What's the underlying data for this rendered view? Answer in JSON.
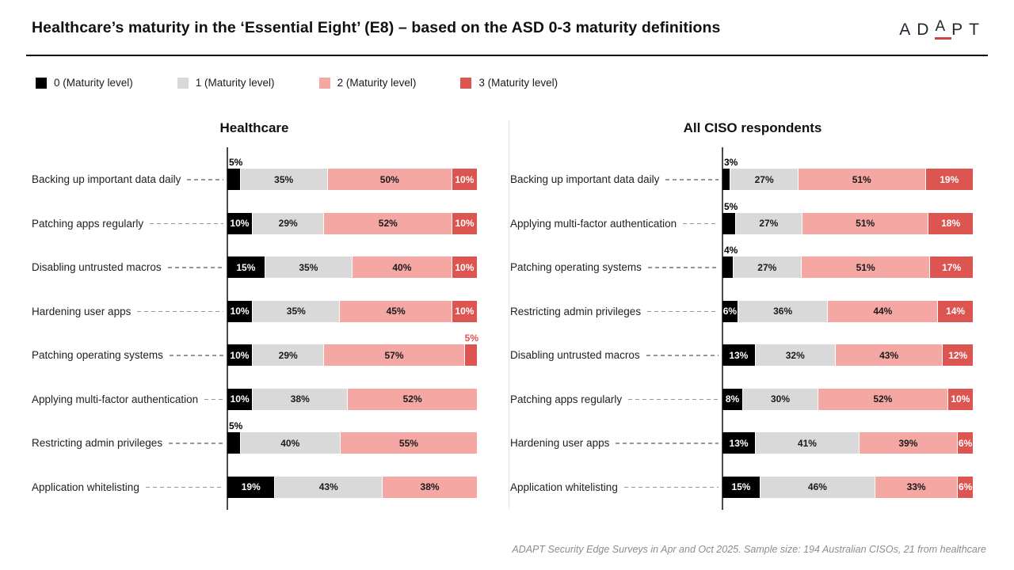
{
  "header": {
    "title": "Healthcare’s maturity in the ‘Essential Eight’ (E8) – based on the ASD 0-3 maturity definitions",
    "logo": {
      "prefix": "AD",
      "accent": "A",
      "suffix": "PT"
    }
  },
  "legend": {
    "items": [
      {
        "label": "0 (Maturity level)",
        "color": "#000000"
      },
      {
        "label": "1 (Maturity level)",
        "color": "#D9D9D9"
      },
      {
        "label": "2 (Maturity level)",
        "color": "#F4A7A3"
      },
      {
        "label": "3 (Maturity level)",
        "color": "#DC5551"
      }
    ]
  },
  "chart_data": [
    {
      "type": "bar",
      "orientation": "horizontal",
      "stacked": true,
      "unit": "%",
      "title": "Healthcare",
      "xlim": [
        0,
        100
      ],
      "grid": false,
      "categories": [
        "Backing up important data daily",
        "Patching apps regularly",
        "Disabling untrusted macros",
        "Hardening user apps",
        "Patching operating systems",
        "Applying multi-factor authentication",
        "Restricting admin privileges",
        "Application whitelisting"
      ],
      "series": [
        {
          "name": "0 (Maturity level)",
          "color": "#000000",
          "values": [
            5,
            10,
            15,
            10,
            10,
            10,
            5,
            19
          ]
        },
        {
          "name": "1 (Maturity level)",
          "color": "#D9D9D9",
          "values": [
            35,
            29,
            35,
            35,
            29,
            38,
            40,
            43
          ]
        },
        {
          "name": "2 (Maturity level)",
          "color": "#F4A7A3",
          "values": [
            50,
            52,
            40,
            45,
            57,
            52,
            55,
            38
          ]
        },
        {
          "name": "3 (Maturity level)",
          "color": "#DC5551",
          "values": [
            10,
            10,
            10,
            10,
            5,
            0,
            0,
            0
          ]
        }
      ]
    },
    {
      "type": "bar",
      "orientation": "horizontal",
      "stacked": true,
      "unit": "%",
      "title": "All CISO respondents",
      "xlim": [
        0,
        100
      ],
      "grid": false,
      "categories": [
        "Backing up important data daily",
        "Applying multi-factor authentication",
        "Patching operating systems",
        "Restricting admin privileges",
        "Disabling untrusted macros",
        "Patching apps regularly",
        "Hardening user apps",
        "Application whitelisting"
      ],
      "series": [
        {
          "name": "0 (Maturity level)",
          "color": "#000000",
          "values": [
            3,
            5,
            4,
            6,
            13,
            8,
            13,
            15
          ]
        },
        {
          "name": "1 (Maturity level)",
          "color": "#D9D9D9",
          "values": [
            27,
            27,
            27,
            36,
            32,
            30,
            41,
            46
          ]
        },
        {
          "name": "2 (Maturity level)",
          "color": "#F4A7A3",
          "values": [
            51,
            51,
            51,
            44,
            43,
            52,
            39,
            33
          ]
        },
        {
          "name": "3 (Maturity level)",
          "color": "#DC5551",
          "values": [
            19,
            18,
            17,
            14,
            12,
            10,
            6,
            6
          ]
        }
      ]
    }
  ],
  "footer": {
    "source": "ADAPT Security Edge Surveys in Apr and Oct 2025. Sample size: 194 Australian CISOs, 21 from healthcare"
  }
}
